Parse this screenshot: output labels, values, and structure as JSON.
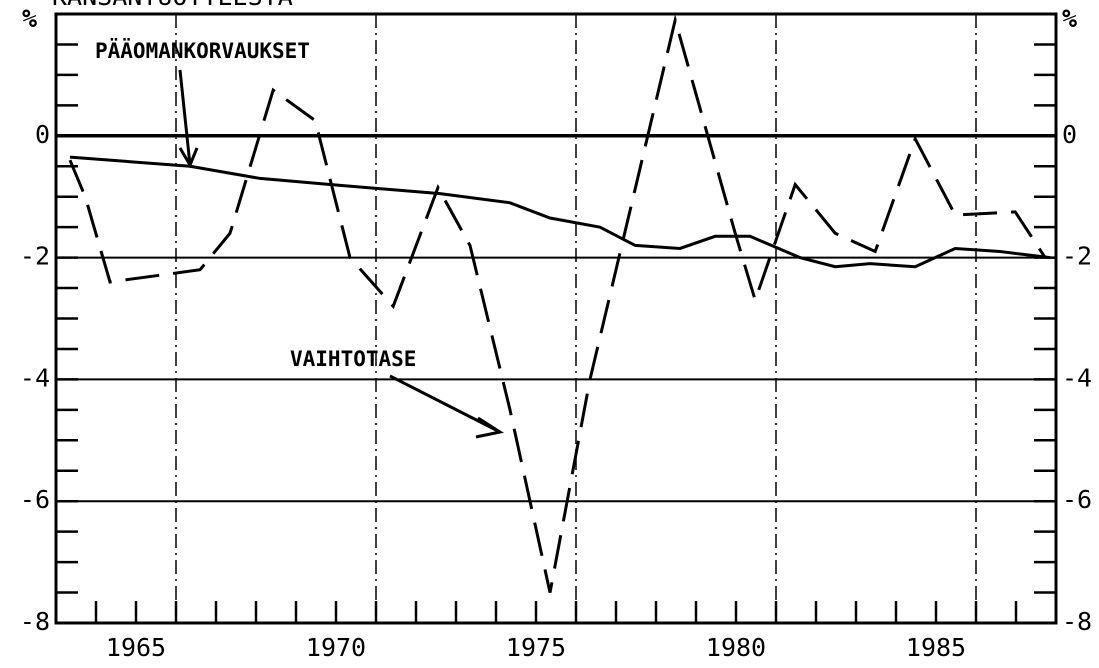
{
  "chart_data": {
    "type": "line",
    "title": "KANSANTUOTTEESTA",
    "y_label": "%",
    "xlim": [
      1963,
      1988
    ],
    "xticks": [
      1965,
      1970,
      1975,
      1980,
      1985
    ],
    "xgrid": [
      1966,
      1971,
      1976,
      1981,
      1986
    ],
    "ylim": [
      -8,
      2
    ],
    "yticks": [
      -8,
      -6,
      -4,
      -2,
      0
    ],
    "grid": true,
    "annotations": [
      "PÄÄOMANKORVAUKSET",
      "VAIHTOTASE"
    ],
    "series": [
      {
        "name": "PÄÄOMANKORVAUKSET",
        "color": "#000",
        "dash": "solid",
        "x": [
          1963.35,
          1966.35,
          1968.1,
          1969.85,
          1972.6,
          1974.35,
          1975.35,
          1976.6,
          1977.48,
          1978.6,
          1979.48,
          1980.35,
          1981.6,
          1982.48,
          1983.35,
          1984.48,
          1985.48,
          1986.6,
          1987.85
        ],
        "values": [
          -0.35,
          -0.5,
          -0.7,
          -0.8,
          -0.95,
          -1.1,
          -1.35,
          -1.5,
          -1.8,
          -1.85,
          -1.65,
          -1.65,
          -2.0,
          -2.15,
          -2.1,
          -2.15,
          -1.85,
          -1.9,
          -2.0
        ]
      },
      {
        "name": "VAIHTOTASE",
        "color": "#000",
        "dash": "dashed",
        "x": [
          1963.35,
          1963.73,
          1964.35,
          1966.6,
          1967.35,
          1968.43,
          1969.48,
          1970.35,
          1971.43,
          1972.55,
          1973.35,
          1974.35,
          1975.35,
          1976.35,
          1978.48,
          1979.98,
          1980.48,
          1981.48,
          1982.48,
          1983.48,
          1984.48,
          1985.48,
          1986.98,
          1987.73
        ],
        "values": [
          -0.4,
          -1.0,
          -2.4,
          -2.2,
          -1.6,
          0.75,
          0.25,
          -2.0,
          -2.8,
          -0.85,
          -1.8,
          -4.5,
          -7.5,
          -4.0,
          1.9,
          -1.6,
          -2.7,
          -0.8,
          -1.6,
          -1.9,
          -0.05,
          -1.3,
          -1.25,
          -2.0
        ]
      }
    ]
  }
}
